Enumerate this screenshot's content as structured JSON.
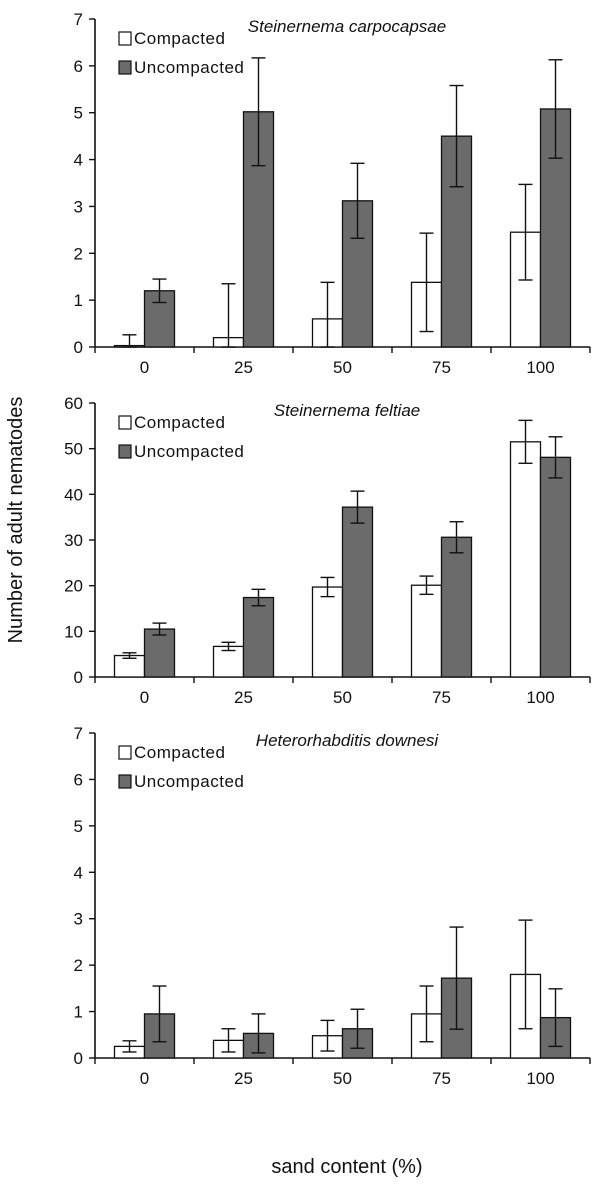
{
  "figure": {
    "ylabel": "Number of adult nematodes",
    "xlabel": "sand content (%)"
  },
  "chart_data": [
    {
      "type": "bar",
      "title": "Steinernema carpocapsae",
      "categories": [
        "0",
        "25",
        "50",
        "75",
        "100"
      ],
      "ylim": [
        0,
        7
      ],
      "yticks": [
        "0",
        "1",
        "2",
        "3",
        "4",
        "5",
        "6",
        "7"
      ],
      "legend_position": "top-left",
      "series": [
        {
          "name": "Compacted",
          "color": "#ffffff",
          "values": [
            0.03,
            0.2,
            0.6,
            1.38,
            2.45
          ],
          "errors": [
            0.23,
            1.15,
            0.78,
            1.05,
            1.02
          ]
        },
        {
          "name": "Uncompacted",
          "color": "#6b6b6b",
          "values": [
            1.2,
            5.02,
            3.12,
            4.5,
            5.08
          ],
          "errors": [
            0.25,
            1.15,
            0.8,
            1.08,
            1.05
          ]
        }
      ]
    },
    {
      "type": "bar",
      "title": "Steinernema feltiae",
      "categories": [
        "0",
        "25",
        "50",
        "75",
        "100"
      ],
      "ylim": [
        0,
        60
      ],
      "yticks": [
        "0",
        "10",
        "20",
        "30",
        "40",
        "50",
        "60"
      ],
      "legend_position": "top-left",
      "series": [
        {
          "name": "Compacted",
          "color": "#ffffff",
          "values": [
            4.7,
            6.7,
            19.7,
            20.1,
            51.5
          ],
          "errors": [
            0.6,
            0.9,
            2.1,
            2.0,
            4.7
          ]
        },
        {
          "name": "Uncompacted",
          "color": "#6b6b6b",
          "values": [
            10.5,
            17.4,
            37.2,
            30.6,
            48.1
          ],
          "errors": [
            1.3,
            1.8,
            3.5,
            3.4,
            4.5
          ]
        }
      ]
    },
    {
      "type": "bar",
      "title": "Heterorhabditis downesi",
      "categories": [
        "0",
        "25",
        "50",
        "75",
        "100"
      ],
      "ylim": [
        0,
        7
      ],
      "yticks": [
        "0",
        "1",
        "2",
        "3",
        "4",
        "5",
        "6",
        "7"
      ],
      "legend_position": "top-left",
      "series": [
        {
          "name": "Compacted",
          "color": "#ffffff",
          "values": [
            0.25,
            0.38,
            0.48,
            0.95,
            1.8
          ],
          "errors": [
            0.12,
            0.25,
            0.33,
            0.6,
            1.17
          ]
        },
        {
          "name": "Uncompacted",
          "color": "#6b6b6b",
          "values": [
            0.95,
            0.53,
            0.63,
            1.72,
            0.87
          ],
          "errors": [
            0.6,
            0.42,
            0.42,
            1.1,
            0.62
          ]
        }
      ]
    }
  ]
}
